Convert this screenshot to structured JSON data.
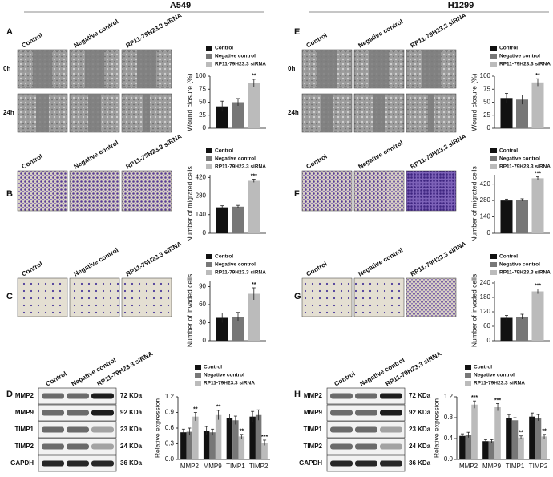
{
  "headers": [
    "A549",
    "H1299"
  ],
  "panels": [
    {
      "letter": "A",
      "image_columns": [
        "Control",
        "Negative control",
        "RP11-79H23.3 siRNA"
      ],
      "image_rows": [
        "0h",
        "24h"
      ]
    },
    {
      "letter": "B",
      "image_columns": [
        "Control",
        "Negative control",
        "RP11-79H23.3 siRNA"
      ]
    },
    {
      "letter": "C",
      "image_columns": [
        "Control",
        "Negative control",
        "RP11-79H23.3 siRNA"
      ]
    },
    {
      "letter": "D",
      "image_columns": [
        "Control",
        "Negative control",
        "RP11-79H23.3 siRNA"
      ],
      "blot_rows": [
        "MMP2",
        "MMP9",
        "TIMP1",
        "TIMP2",
        "GAPDH"
      ],
      "blot_sizes": [
        "72 KDa",
        "92 KDa",
        "23 KDa",
        "24 KDa",
        "36 KDa"
      ]
    },
    {
      "letter": "E",
      "image_columns": [
        "Control",
        "Negative control",
        "RP11-79H23.3 siRNA"
      ],
      "image_rows": [
        "0h",
        "24h"
      ]
    },
    {
      "letter": "F",
      "image_columns": [
        "Control",
        "Negative control",
        "RP11-79H23.3 siRNA"
      ]
    },
    {
      "letter": "G",
      "image_columns": [
        "Control",
        "Negative control",
        "RP11-79H23.3 siRNA"
      ]
    },
    {
      "letter": "H",
      "image_columns": [
        "Control",
        "Negative control",
        "RP11-79H23.3 siRNA"
      ],
      "blot_rows": [
        "MMP2",
        "MMP9",
        "TIMP1",
        "TIMP2",
        "GAPDH"
      ],
      "blot_sizes": [
        "72 KDa",
        "92 KDa",
        "23 KDa",
        "24 KDa",
        "36 KDa"
      ]
    }
  ],
  "chart_data": [
    {
      "type": "bar",
      "y_label": "Wound closure (%)",
      "ylim": [
        0,
        100
      ],
      "yticks": [
        0,
        25,
        50,
        75,
        100
      ],
      "series": [
        {
          "name": "Control",
          "color": "#111111",
          "values": [
            42
          ],
          "errors": [
            10
          ]
        },
        {
          "name": "Negative control",
          "color": "#777777",
          "values": [
            50
          ],
          "errors": [
            7
          ]
        },
        {
          "name": "RP11-79H23.3 siRNA",
          "color": "#bbbbbb",
          "values": [
            87
          ],
          "errors": [
            7
          ],
          "annotations": [
            "**"
          ]
        }
      ]
    },
    {
      "type": "bar",
      "y_label": "Number of migrated cells",
      "ylim": [
        0,
        440
      ],
      "yticks": [
        0,
        140,
        280,
        420
      ],
      "series": [
        {
          "name": "Control",
          "color": "#111111",
          "values": [
            195
          ],
          "errors": [
            12
          ]
        },
        {
          "name": "Negative control",
          "color": "#777777",
          "values": [
            200
          ],
          "errors": [
            10
          ]
        },
        {
          "name": "RP11-79H23.3 siRNA",
          "color": "#bbbbbb",
          "values": [
            395
          ],
          "errors": [
            12
          ],
          "annotations": [
            "***"
          ]
        }
      ]
    },
    {
      "type": "bar",
      "y_label": "Number of invaded cells",
      "ylim": [
        0,
        100
      ],
      "yticks": [
        0,
        30,
        60,
        90
      ],
      "series": [
        {
          "name": "Control",
          "color": "#111111",
          "values": [
            38
          ],
          "errors": [
            8
          ]
        },
        {
          "name": "Negative control",
          "color": "#777777",
          "values": [
            40
          ],
          "errors": [
            7
          ]
        },
        {
          "name": "RP11-79H23.3 siRNA",
          "color": "#bbbbbb",
          "values": [
            78
          ],
          "errors": [
            10
          ],
          "annotations": [
            "**"
          ]
        }
      ]
    },
    {
      "type": "bar",
      "y_label": "Relative expression",
      "categories": [
        "MMP2",
        "MMP9",
        "TIMP1",
        "TIMP2"
      ],
      "ylim": [
        0,
        1.2
      ],
      "yticks": [
        {
          "value": 0,
          "label": "0.0"
        },
        0.3,
        0.6,
        0.9,
        1.2
      ],
      "series": [
        {
          "name": "Control",
          "color": "#111111",
          "values": [
            0.52,
            0.55,
            0.8,
            0.82
          ],
          "errors": [
            0.06,
            0.08,
            0.07,
            0.1
          ]
        },
        {
          "name": "Negative control",
          "color": "#777777",
          "values": [
            0.53,
            0.52,
            0.75,
            0.85
          ],
          "errors": [
            0.07,
            0.06,
            0.08,
            0.1
          ]
        },
        {
          "name": "RP11-79H23.3 siRNA",
          "color": "#bbbbbb",
          "values": [
            0.82,
            0.85,
            0.44,
            0.32
          ],
          "errors": [
            0.08,
            0.09,
            0.04,
            0.05
          ],
          "annotations": [
            "**",
            "**",
            "**",
            "***"
          ]
        }
      ]
    },
    {
      "type": "bar",
      "y_label": "Wound closure (%)",
      "ylim": [
        0,
        100
      ],
      "yticks": [
        0,
        25,
        50,
        75,
        100
      ],
      "series": [
        {
          "name": "Control",
          "color": "#111111",
          "values": [
            58
          ],
          "errors": [
            9
          ]
        },
        {
          "name": "Negative control",
          "color": "#777777",
          "values": [
            55
          ],
          "errors": [
            9
          ]
        },
        {
          "name": "RP11-79H23.3 siRNA",
          "color": "#bbbbbb",
          "values": [
            88
          ],
          "errors": [
            7
          ],
          "annotations": [
            "**"
          ]
        }
      ]
    },
    {
      "type": "bar",
      "y_label": "Number of migrated cells",
      "ylim": [
        0,
        500
      ],
      "yticks": [
        0,
        140,
        280,
        420
      ],
      "series": [
        {
          "name": "Control",
          "color": "#111111",
          "values": [
            280
          ],
          "errors": [
            12
          ]
        },
        {
          "name": "Negative control",
          "color": "#777777",
          "values": [
            285
          ],
          "errors": [
            10
          ]
        },
        {
          "name": "RP11-79H23.3 siRNA",
          "color": "#bbbbbb",
          "values": [
            470
          ],
          "errors": [
            12
          ],
          "annotations": [
            "***"
          ]
        }
      ]
    },
    {
      "type": "bar",
      "y_label": "Number of invaded cells",
      "ylim": [
        0,
        250
      ],
      "yticks": [
        0,
        60,
        120,
        180,
        240
      ],
      "series": [
        {
          "name": "Control",
          "color": "#111111",
          "values": [
            95
          ],
          "errors": [
            10
          ]
        },
        {
          "name": "Negative control",
          "color": "#777777",
          "values": [
            100
          ],
          "errors": [
            10
          ]
        },
        {
          "name": "RP11-79H23.3 siRNA",
          "color": "#bbbbbb",
          "values": [
            205
          ],
          "errors": [
            10
          ],
          "annotations": [
            "***"
          ]
        }
      ]
    },
    {
      "type": "bar",
      "y_label": "Relative expression",
      "categories": [
        "MMP2",
        "MMP9",
        "TIMP1",
        "TIMP2"
      ],
      "ylim": [
        0,
        1.2
      ],
      "yticks": [
        {
          "value": 0,
          "label": "0.0"
        },
        0.4,
        0.8,
        1.2
      ],
      "series": [
        {
          "name": "Control",
          "color": "#111111",
          "values": [
            0.45,
            0.35,
            0.8,
            0.82
          ],
          "errors": [
            0.04,
            0.03,
            0.06,
            0.07
          ]
        },
        {
          "name": "Negative control",
          "color": "#777777",
          "values": [
            0.47,
            0.35,
            0.75,
            0.8
          ],
          "errors": [
            0.05,
            0.03,
            0.05,
            0.06
          ]
        },
        {
          "name": "RP11-79H23.3 siRNA",
          "color": "#bbbbbb",
          "values": [
            1.05,
            1.0,
            0.42,
            0.44
          ],
          "errors": [
            0.07,
            0.07,
            0.03,
            0.04
          ],
          "annotations": [
            "***",
            "***",
            "**",
            "**"
          ]
        }
      ]
    }
  ]
}
